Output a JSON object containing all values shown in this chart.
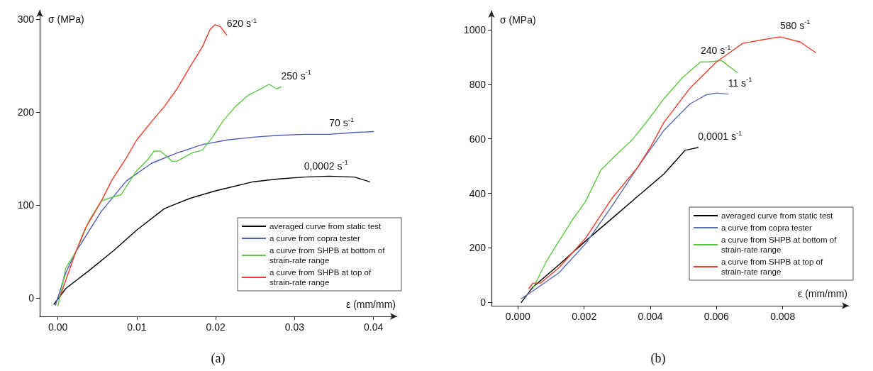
{
  "chart_data": [
    {
      "type": "line",
      "title": "(a)",
      "xlabel": "ε (mm/mm)",
      "ylabel": "σ (MPa)",
      "xlim": [
        -0.0023,
        0.043
      ],
      "ylim": [
        -20,
        310
      ],
      "xticks": [
        {
          "value": 0,
          "label": "0.00"
        },
        {
          "value": 0.01,
          "label": "0.01"
        },
        {
          "value": 0.02,
          "label": "0.02"
        },
        {
          "value": 0.03,
          "label": "0.03"
        },
        {
          "value": 0.04,
          "label": "0.04"
        }
      ],
      "yticks": [
        0,
        100,
        200,
        300
      ],
      "grid": false,
      "legend": "bottom right",
      "marker": "none",
      "line_style": "solid",
      "annotations": [
        {
          "text": "620 s$^{-1}$",
          "x": 0.0214,
          "y": 283
        },
        {
          "text": "250 s$^{-1}$",
          "x": 0.0283,
          "y": 227
        },
        {
          "text": "70 s$^{-1}$",
          "x": 0.0344,
          "y": 176
        },
        {
          "text": "0,0002 s$^{-1}$",
          "x": 0.0312,
          "y": 130
        }
      ],
      "series": [
        {
          "name": "averaged curve from static test",
          "color": "#000000",
          "x": [
            -0.0005,
            0.001,
            0.0039,
            0.0071,
            0.01,
            0.0135,
            0.0167,
            0.0199,
            0.0248,
            0.028,
            0.0312,
            0.0344,
            0.0376,
            0.0395
          ],
          "values": [
            -7,
            10,
            29,
            51,
            73,
            96,
            107,
            115,
            125,
            128,
            130,
            131,
            130,
            125
          ]
        },
        {
          "name": "a curve from copra tester",
          "color": "#4a5fc1",
          "x": [
            -0.0003,
            0.001,
            0.00225,
            0.0055,
            0.0087,
            0.0119,
            0.0151,
            0.0183,
            0.0215,
            0.0248,
            0.028,
            0.0312,
            0.0344,
            0.0376,
            0.04
          ],
          "values": [
            -8,
            27,
            49,
            93,
            126,
            145,
            156,
            165,
            170,
            173,
            175,
            176,
            176,
            178,
            179
          ]
        },
        {
          "name": "a curve from SHPB at bottom of strain-rate range",
          "color": "#5cc940",
          "x": [
            0,
            0.001,
            0.00225,
            0.0039,
            0.0055,
            0.0064,
            0.008,
            0.01,
            0.0113,
            0.0122,
            0.013,
            0.0145,
            0.0151,
            0.017,
            0.0183,
            0.0196,
            0.0209,
            0.0225,
            0.0241,
            0.0257,
            0.0268,
            0.0277,
            0.0283
          ],
          "values": [
            -9,
            32,
            49,
            82,
            104,
            107,
            111,
            137,
            148,
            158,
            158,
            147,
            147,
            156,
            159,
            173,
            190,
            206,
            218,
            225,
            230,
            225,
            227
          ]
        },
        {
          "name": "a curve from SHPB at top of strain-rate range",
          "color": "#f03c28",
          "x": [
            0.0003,
            0.00225,
            0.0035,
            0.0055,
            0.0068,
            0.0087,
            0.01,
            0.0119,
            0.0135,
            0.0151,
            0.0167,
            0.0183,
            0.0193,
            0.0199,
            0.0206,
            0.0214
          ],
          "values": [
            2,
            49,
            75,
            104,
            126,
            151,
            170,
            190,
            206,
            225,
            248,
            270,
            289,
            294,
            292,
            283
          ]
        }
      ]
    },
    {
      "type": "line",
      "title": "(b)",
      "xlabel": "ε (mm/mm)",
      "ylabel": "σ (MPa)",
      "xlim": [
        -0.0008,
        0.01
      ],
      "ylim": [
        -12,
        1070
      ],
      "xticks": [
        {
          "value": 0,
          "label": "0.000"
        },
        {
          "value": 0.002,
          "label": "0.002"
        },
        {
          "value": 0.004,
          "label": "0.004"
        },
        {
          "value": 0.006,
          "label": "0.006"
        },
        {
          "value": 0.008,
          "label": "0.008"
        }
      ],
      "yticks": [
        0,
        200,
        400,
        600,
        800,
        1000
      ],
      "grid": false,
      "legend": "bottom right",
      "marker": "none",
      "line_style": "solid",
      "annotations": [
        {
          "text": "580 s$^{-1}$",
          "x": 0.00792,
          "y": 974
        },
        {
          "text": "240 s$^{-1}$",
          "x": 0.00552,
          "y": 882
        },
        {
          "text": "11 s$^{-1}$",
          "x": 0.00635,
          "y": 764
        },
        {
          "text": "0,0001 s$^{-1}$",
          "x": 0.00544,
          "y": 568
        }
      ],
      "series": [
        {
          "name": "averaged curve from static test",
          "color": "#000000",
          "x": [
            0.0001,
            0.00045,
            0.00124,
            0.00204,
            0.00283,
            0.00362,
            0.00441,
            0.00481,
            0.00505,
            0.00544
          ],
          "values": [
            0,
            56,
            138,
            225,
            307,
            389,
            471,
            525,
            558,
            568
          ]
        },
        {
          "name": "a curve from copra tester",
          "color": "#5a6fb0",
          "x": [
            0.0001,
            0.00045,
            0.00124,
            0.00204,
            0.00283,
            0.00362,
            0.00441,
            0.0052,
            0.00568,
            0.006,
            0.00635
          ],
          "values": [
            14,
            42,
            109,
            215,
            351,
            496,
            631,
            728,
            761,
            768,
            764
          ]
        },
        {
          "name": "a curve from SHPB at bottom of strain-rate range",
          "color": "#5cc940",
          "x": [
            0.00045,
            0.00085,
            0.00124,
            0.00164,
            0.00204,
            0.00251,
            0.00291,
            0.00346,
            0.00394,
            0.00441,
            0.00497,
            0.00552,
            0.00576,
            0.00615,
            0.00663
          ],
          "values": [
            51,
            148,
            225,
            302,
            370,
            486,
            534,
            597,
            670,
            747,
            824,
            882,
            882,
            887,
            843
          ]
        },
        {
          "name": "a curve from SHPB at top of strain-rate range",
          "color": "#f03c28",
          "x": [
            0.00033,
            0.00045,
            0.00069,
            0.00124,
            0.00204,
            0.00283,
            0.00362,
            0.00402,
            0.00441,
            0.0052,
            0.006,
            0.00679,
            0.00742,
            0.00792,
            0.00853,
            0.009
          ],
          "values": [
            51,
            71,
            71,
            128,
            235,
            380,
            496,
            573,
            660,
            786,
            882,
            950,
            964,
            974,
            955,
            916
          ]
        }
      ]
    }
  ]
}
